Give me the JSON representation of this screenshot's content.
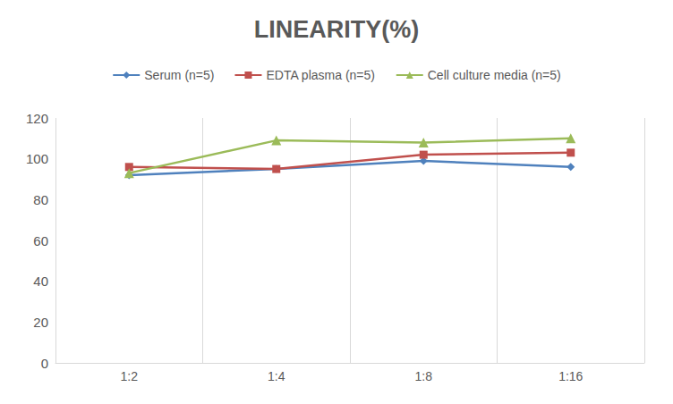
{
  "chart_data": {
    "type": "line",
    "title": "LINEARITY(%)",
    "categories": [
      "1:2",
      "1:4",
      "1:8",
      "1:16"
    ],
    "series": [
      {
        "name": "Serum (n=5)",
        "color": "#4f81bd",
        "marker": "diamond",
        "values": [
          92,
          95,
          99,
          96
        ]
      },
      {
        "name": "EDTA plasma (n=5)",
        "color": "#c0504d",
        "marker": "square",
        "values": [
          96,
          95,
          102,
          103
        ]
      },
      {
        "name": "Cell culture media (n=5)",
        "color": "#9bbb59",
        "marker": "triangle",
        "values": [
          93,
          109,
          108,
          110
        ]
      }
    ],
    "ylim": [
      0,
      120
    ],
    "yticks": [
      0,
      20,
      40,
      60,
      80,
      100,
      120
    ],
    "grid": true,
    "legend": "top"
  }
}
